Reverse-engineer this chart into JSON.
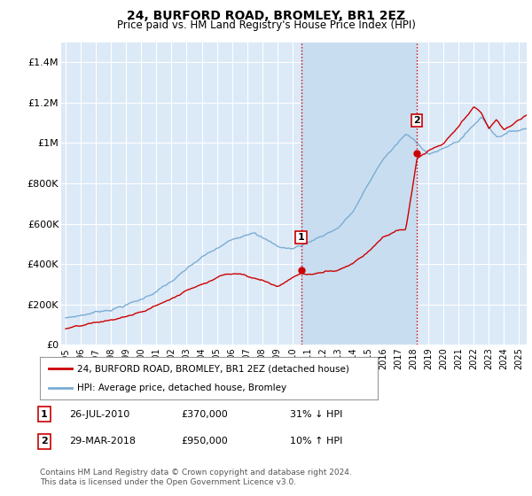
{
  "title": "24, BURFORD ROAD, BROMLEY, BR1 2EZ",
  "subtitle": "Price paid vs. HM Land Registry's House Price Index (HPI)",
  "ylim": [
    0,
    1500000
  ],
  "background_color": "#ffffff",
  "plot_bg_color": "#dce9f7",
  "shade_color": "#c8ddf0",
  "grid_color": "#ffffff",
  "hpi_color": "#7aadd4",
  "sale_color": "#cc0000",
  "vline_color": "#cc0000",
  "annotation_box_color": "#cc0000",
  "legend_label_sale": "24, BURFORD ROAD, BROMLEY, BR1 2EZ (detached house)",
  "legend_label_hpi": "HPI: Average price, detached house, Bromley",
  "sale1_year": 2010.57,
  "sale1_price": 370000,
  "sale1_label": "1",
  "sale2_year": 2018.24,
  "sale2_price": 950000,
  "sale2_label": "2",
  "note1_date": "26-JUL-2010",
  "note1_price": "£370,000",
  "note1_hpi": "31% ↓ HPI",
  "note2_date": "29-MAR-2018",
  "note2_price": "£950,000",
  "note2_hpi": "10% ↑ HPI",
  "footer": "Contains HM Land Registry data © Crown copyright and database right 2024.\nThis data is licensed under the Open Government Licence v3.0.",
  "yticks": [
    0,
    200000,
    400000,
    600000,
    800000,
    1000000,
    1200000,
    1400000
  ],
  "ytick_labels": [
    "£0",
    "£200K",
    "£400K",
    "£600K",
    "£800K",
    "£1M",
    "£1.2M",
    "£1.4M"
  ]
}
